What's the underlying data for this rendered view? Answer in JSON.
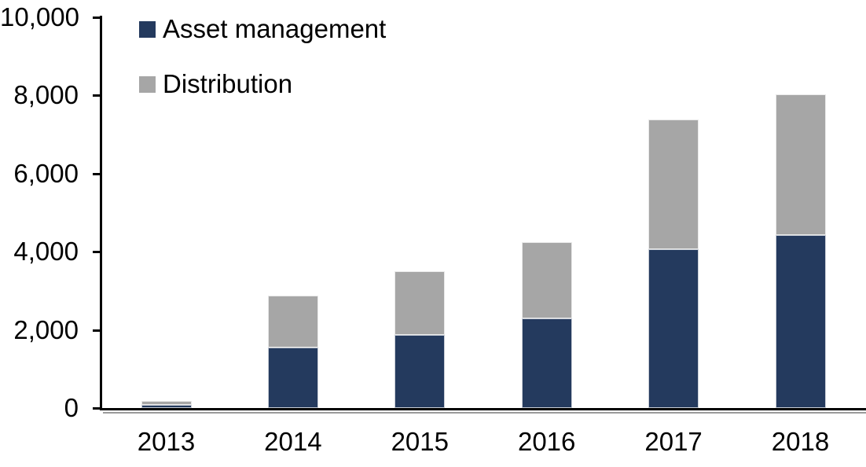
{
  "chart_data": {
    "type": "bar",
    "stacked": true,
    "title": "",
    "xlabel": "",
    "ylabel": "",
    "categories": [
      "2013",
      "2014",
      "2015",
      "2016",
      "2017",
      "2018"
    ],
    "series": [
      {
        "name": "Asset management",
        "color": "#243A5E",
        "values": [
          80,
          1550,
          1880,
          2300,
          4060,
          4430
        ]
      },
      {
        "name": "Distribution",
        "color": "#A6A6A6",
        "values": [
          100,
          1320,
          1620,
          1950,
          3330,
          3600
        ]
      }
    ],
    "stack_totals": [
      180,
      2870,
      3500,
      4250,
      7390,
      8030
    ],
    "ylim": [
      0,
      10000
    ],
    "ytick_values": [
      0,
      2000,
      4000,
      6000,
      8000,
      10000
    ],
    "ytick_labels": [
      "0",
      "2,000",
      "4,000",
      "6,000",
      "8,000",
      "10,000"
    ],
    "legend_position": "top-left",
    "grid": false,
    "axis_color": "#000000",
    "background_color": "#FFFFFF"
  }
}
